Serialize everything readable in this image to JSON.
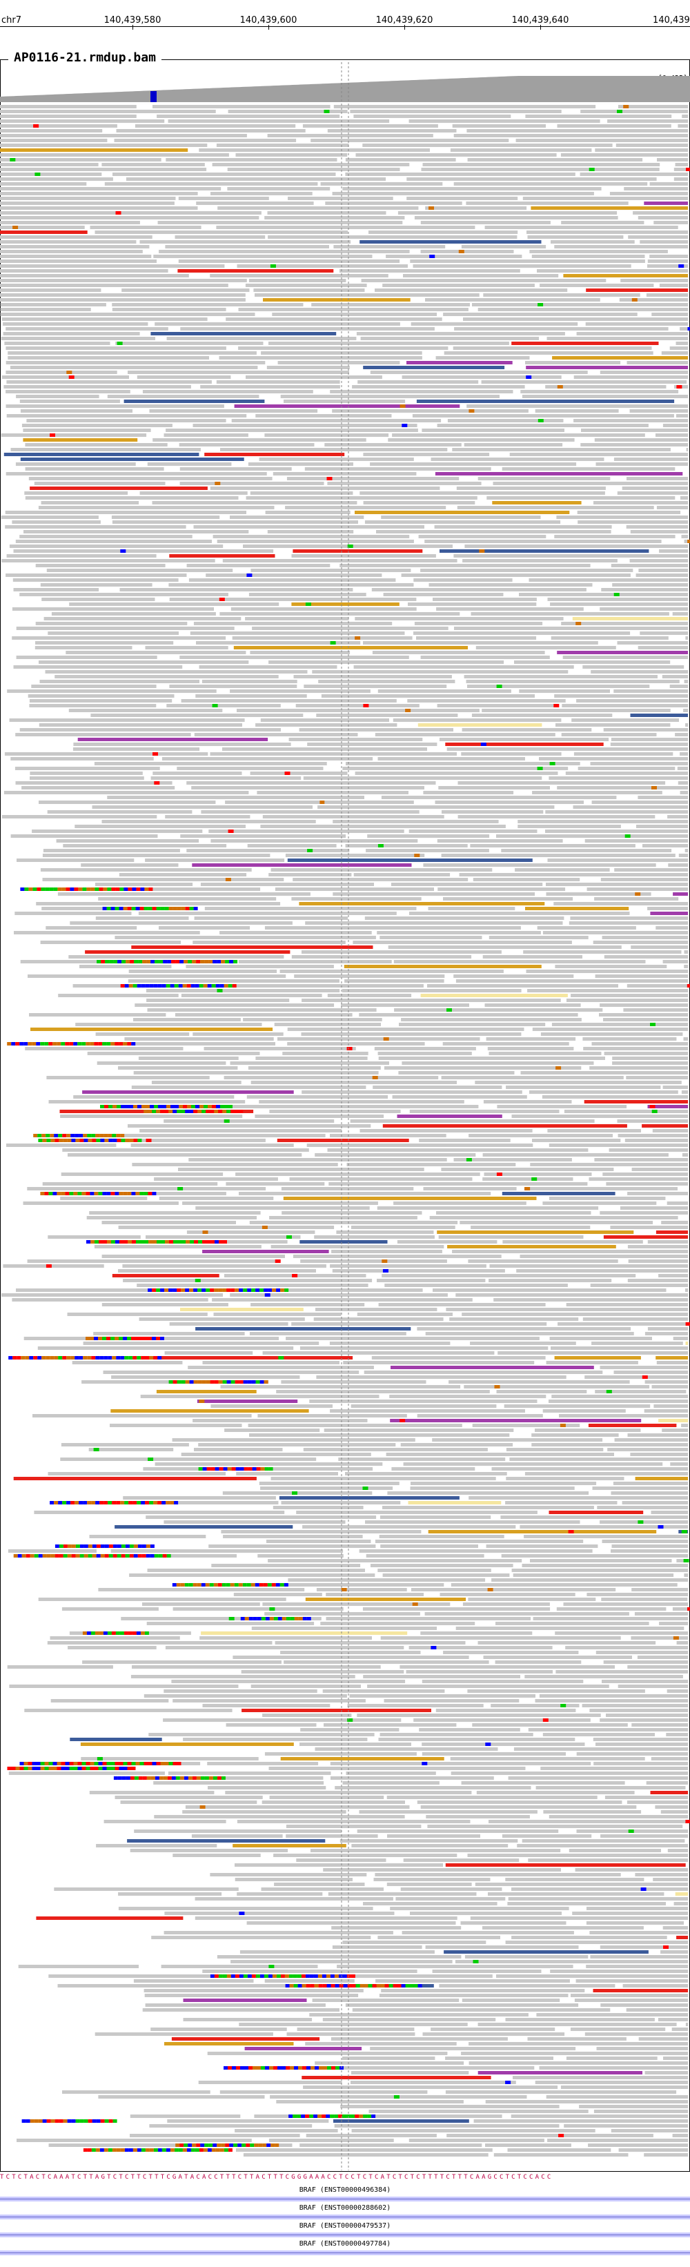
{
  "ruler": {
    "chrom": "chr7",
    "ticks": [
      "140,439,580",
      "140,439,600",
      "140,439,620",
      "140,439,640",
      "140,439,"
    ]
  },
  "track": {
    "title": "AP0116-21.rmdup.bam",
    "range": "[0-425]"
  },
  "colors": {
    "read": "#c8c8c8",
    "coverage": "#a0a0a0",
    "mismatch_a": "#00cc00",
    "mismatch_c": "#0000ff",
    "mismatch_g": "#d17105",
    "mismatch_t": "#ff0000",
    "insert_red": "#e8211a",
    "insert_yellow": "#f5e6a0",
    "insert_blue": "#3c5b9a",
    "insert_purple": "#a03caa",
    "insert_orange": "#d8a020"
  },
  "sequence": "TCTCTACTCAAATCTTAGTCTCTTCTTTCGATACACCTTTCTTACTTTCGGGAAACCTCCTCTCATCTCTCTTTTCTTTCAAGCCTCTCCACC",
  "genes": [
    {
      "label": "BRAF (ENST00000496384)"
    },
    {
      "label": "BRAF (ENST00000288602)"
    },
    {
      "label": "BRAF (ENST00000479537)"
    },
    {
      "label": "BRAF (ENST00000497784)"
    }
  ]
}
